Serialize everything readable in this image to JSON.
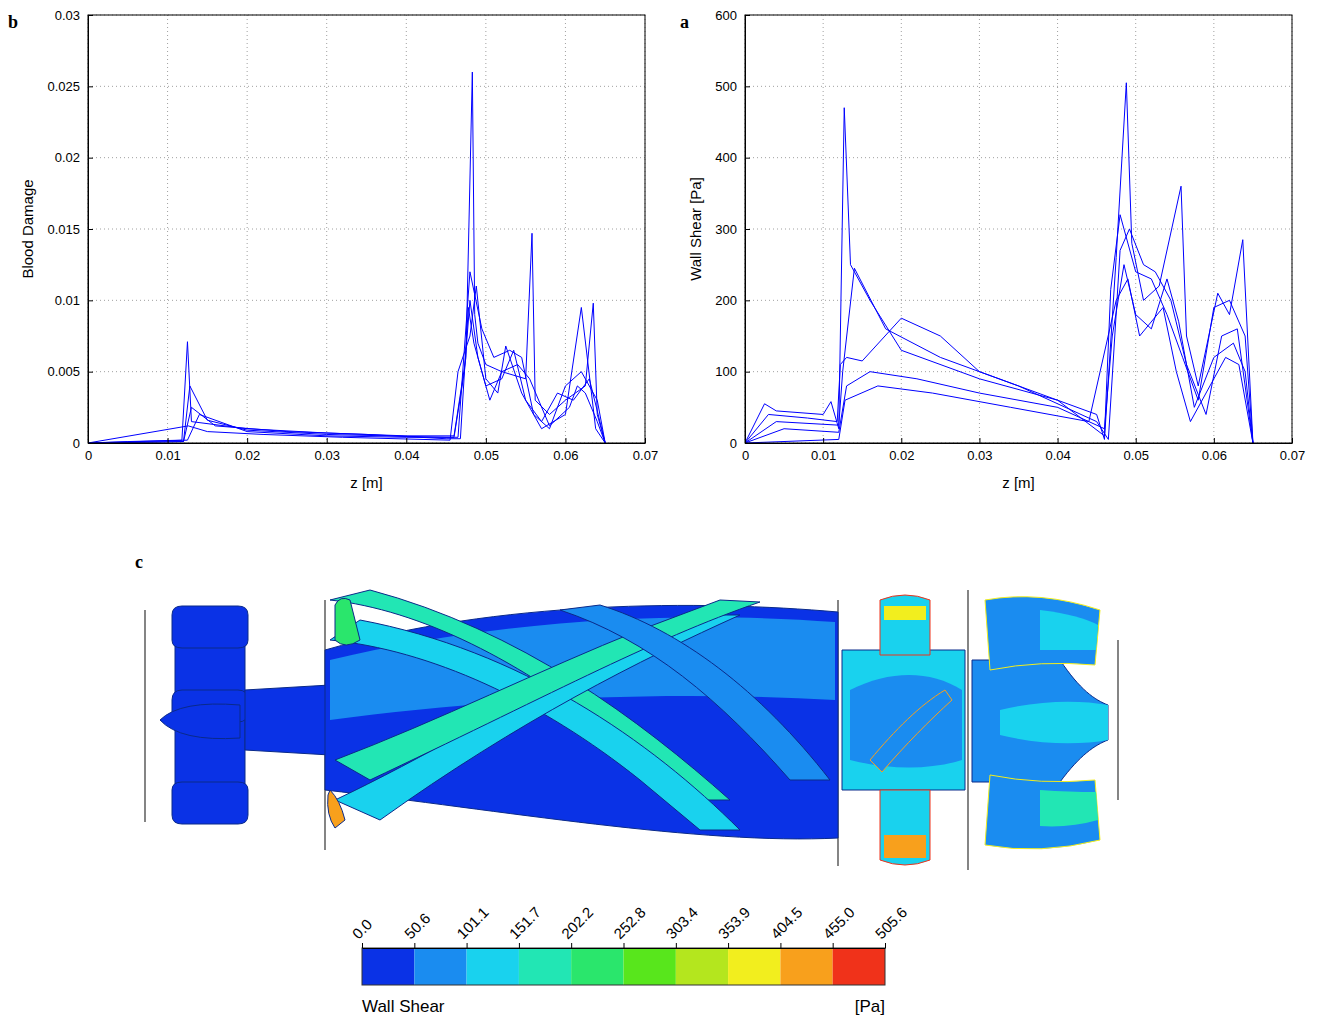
{
  "chart_data": [
    {
      "type": "line",
      "panel": "b",
      "x_label": "z [m]",
      "y_label": "Blood Damage",
      "xlim": [
        0,
        0.07
      ],
      "xticks": [
        0,
        0.01,
        0.02,
        0.03,
        0.04,
        0.05,
        0.06,
        0.07
      ],
      "ylim": [
        0,
        0.03
      ],
      "yticks": [
        0,
        0.005,
        0.01,
        0.015,
        0.02,
        0.025,
        0.03
      ],
      "grid": true,
      "color": "#0000ff",
      "series": [
        {
          "x": [
            0,
            0.005,
            0.0118,
            0.0125,
            0.013,
            0.02,
            0.03,
            0.04,
            0.046,
            0.0475,
            0.0483,
            0.0486,
            0.049,
            0.05,
            0.052,
            0.055,
            0.0558,
            0.0562,
            0.058,
            0.06,
            0.0625,
            0.0635,
            0.064,
            0.065
          ],
          "values": [
            0,
            0.0001,
            0.0002,
            0.0071,
            0.0015,
            0.001,
            0.0007,
            0.0005,
            0.0005,
            0.006,
            0.026,
            0.009,
            0.007,
            0.0055,
            0.005,
            0.0045,
            0.0147,
            0.003,
            0.002,
            0.003,
            0.004,
            0.0098,
            0.002,
            0
          ]
        },
        {
          "x": [
            0,
            0.012,
            0.0128,
            0.015,
            0.02,
            0.03,
            0.045,
            0.0465,
            0.048,
            0.0495,
            0.051,
            0.053,
            0.0545,
            0.056,
            0.058,
            0.06,
            0.062,
            0.064,
            0.065
          ],
          "values": [
            0,
            0.0001,
            0.004,
            0.0016,
            0.0009,
            0.0006,
            0.0004,
            0.0004,
            0.012,
            0.008,
            0.006,
            0.0065,
            0.006,
            0.002,
            0.001,
            0.004,
            0.005,
            0.003,
            0
          ]
        },
        {
          "x": [
            0,
            0.012,
            0.013,
            0.016,
            0.025,
            0.035,
            0.045,
            0.0468,
            0.0478,
            0.0485,
            0.05,
            0.052,
            0.0535,
            0.055,
            0.057,
            0.059,
            0.061,
            0.063,
            0.065
          ],
          "values": [
            0,
            0.0001,
            0.0025,
            0.0012,
            0.0008,
            0.0006,
            0.0003,
            0.0003,
            0.0095,
            0.007,
            0.004,
            0.0045,
            0.0065,
            0.003,
            0.0015,
            0.0035,
            0.003,
            0.0045,
            0
          ]
        },
        {
          "x": [
            0,
            0.0125,
            0.014,
            0.02,
            0.03,
            0.04,
            0.046,
            0.0473,
            0.048,
            0.049,
            0.0505,
            0.052,
            0.054,
            0.0555,
            0.058,
            0.0605,
            0.0615,
            0.0625,
            0.064,
            0.065
          ],
          "values": [
            0,
            0.0002,
            0.002,
            0.0008,
            0.0005,
            0.0004,
            0.0004,
            0.005,
            0.01,
            0.006,
            0.003,
            0.005,
            0.0055,
            0.0045,
            0.0012,
            0.0025,
            0.004,
            0.0035,
            0.0015,
            0
          ]
        },
        {
          "x": [
            0,
            0.0126,
            0.015,
            0.022,
            0.032,
            0.0455,
            0.0465,
            0.048,
            0.0488,
            0.05,
            0.0515,
            0.0525,
            0.0545,
            0.057,
            0.06,
            0.062,
            0.0638,
            0.065
          ],
          "values": [
            0,
            0.0012,
            0.0008,
            0.0006,
            0.0004,
            0.0002,
            0.005,
            0.0075,
            0.011,
            0.0045,
            0.0035,
            0.0068,
            0.0035,
            0.001,
            0.002,
            0.0095,
            0.001,
            0
          ]
        }
      ]
    },
    {
      "type": "line",
      "panel": "a",
      "x_label": "z [m]",
      "y_label": "Wall Shear [Pa]",
      "xlim": [
        0,
        0.07
      ],
      "xticks": [
        0,
        0.01,
        0.02,
        0.03,
        0.04,
        0.05,
        0.06,
        0.07
      ],
      "ylim": [
        0,
        600
      ],
      "yticks": [
        0,
        100,
        200,
        300,
        400,
        500,
        600
      ],
      "grid": true,
      "color": "#0000ff",
      "series": [
        {
          "x": [
            0,
            0.0025,
            0.004,
            0.01,
            0.011,
            0.012,
            0.0127,
            0.0135,
            0.016,
            0.02,
            0.03,
            0.04,
            0.045,
            0.046,
            0.0475,
            0.0488,
            0.0495,
            0.051,
            0.053,
            0.0558,
            0.0565,
            0.058,
            0.0605,
            0.062,
            0.0637,
            0.065
          ],
          "values": [
            0,
            55,
            45,
            40,
            58,
            20,
            470,
            250,
            200,
            130,
            90,
            60,
            40,
            5,
            260,
            505,
            280,
            200,
            220,
            360,
            150,
            80,
            210,
            180,
            285,
            0
          ]
        },
        {
          "x": [
            0,
            0.003,
            0.008,
            0.0118,
            0.0122,
            0.013,
            0.015,
            0.02,
            0.025,
            0.03,
            0.04,
            0.046,
            0.0468,
            0.048,
            0.05,
            0.052,
            0.054,
            0.056,
            0.058,
            0.06,
            0.062,
            0.064,
            0.065
          ],
          "values": [
            0,
            40,
            35,
            30,
            110,
            120,
            115,
            175,
            150,
            100,
            60,
            10,
            215,
            320,
            240,
            230,
            180,
            120,
            60,
            190,
            200,
            150,
            0
          ]
        },
        {
          "x": [
            0,
            0.004,
            0.012,
            0.0125,
            0.014,
            0.018,
            0.025,
            0.035,
            0.045,
            0.0465,
            0.048,
            0.0492,
            0.051,
            0.0525,
            0.0545,
            0.0565,
            0.059,
            0.061,
            0.063,
            0.065
          ],
          "values": [
            0,
            30,
            25,
            100,
            245,
            160,
            120,
            80,
            30,
            5,
            270,
            300,
            250,
            240,
            200,
            110,
            40,
            150,
            160,
            0
          ]
        },
        {
          "x": [
            0,
            0.005,
            0.012,
            0.013,
            0.016,
            0.022,
            0.03,
            0.04,
            0.046,
            0.047,
            0.0485,
            0.05,
            0.052,
            0.054,
            0.0555,
            0.0575,
            0.06,
            0.0625,
            0.064,
            0.065
          ],
          "values": [
            0,
            20,
            15,
            80,
            100,
            90,
            70,
            50,
            20,
            150,
            250,
            180,
            160,
            230,
            170,
            50,
            120,
            140,
            100,
            0
          ]
        },
        {
          "x": [
            0,
            0.012,
            0.0128,
            0.017,
            0.024,
            0.034,
            0.044,
            0.0475,
            0.049,
            0.0505,
            0.0535,
            0.0552,
            0.057,
            0.0595,
            0.0615,
            0.0632,
            0.065
          ],
          "values": [
            0,
            5,
            60,
            80,
            70,
            50,
            30,
            200,
            230,
            150,
            190,
            100,
            30,
            80,
            120,
            110,
            0
          ]
        }
      ]
    },
    {
      "type": "colorbar",
      "panel": "c",
      "title": "Wall Shear",
      "unit": "[Pa]",
      "range": [
        0,
        505.6
      ],
      "ticks": [
        {
          "value": 0,
          "label": "0.0"
        },
        50.6,
        101.1,
        151.7,
        202.2,
        252.8,
        303.4,
        353.9,
        404.5,
        {
          "value": 455,
          "label": "455.0"
        },
        505.6
      ],
      "colors": [
        "#0a32e6",
        "#1a8cf0",
        "#19d2ee",
        "#22e6b4",
        "#2ae66c",
        "#58e61c",
        "#b4e61e",
        "#f2ee1e",
        "#f8a01c",
        "#f0321a"
      ]
    }
  ]
}
